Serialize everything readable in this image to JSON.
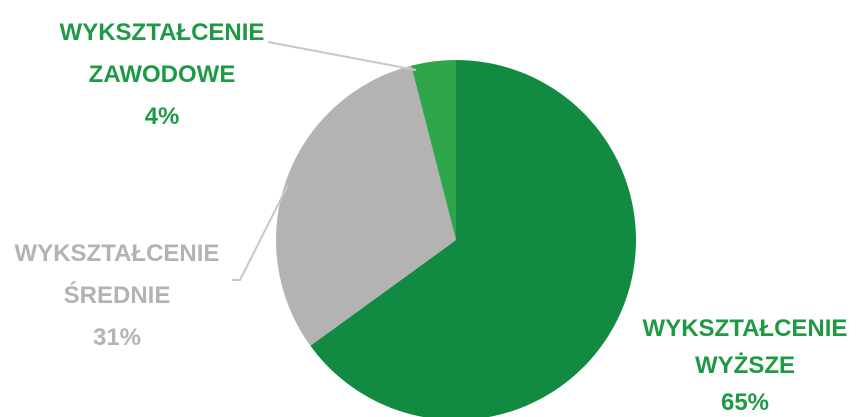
{
  "chart_data": {
    "type": "pie",
    "title": "",
    "slices": [
      {
        "label_line1": "WYKSZTAŁCENIE",
        "label_line2": "WYŻSZE",
        "value_label": "65%",
        "value": 65,
        "color": "#138a42",
        "text_color": "#1e9a45"
      },
      {
        "label_line1": "WYKSZTAŁCENIE",
        "label_line2": "ŚREDNIE",
        "value_label": "31%",
        "value": 31,
        "color": "#b3b3b3",
        "text_color": "#b3b3b3"
      },
      {
        "label_line1": "WYKSZTAŁCENIE",
        "label_line2": "ZAWODOWE",
        "value_label": "4%",
        "value": 4,
        "color": "#2fa64b",
        "text_color": "#1e9a45"
      }
    ],
    "leader_line_color": "#c8c8c8"
  }
}
